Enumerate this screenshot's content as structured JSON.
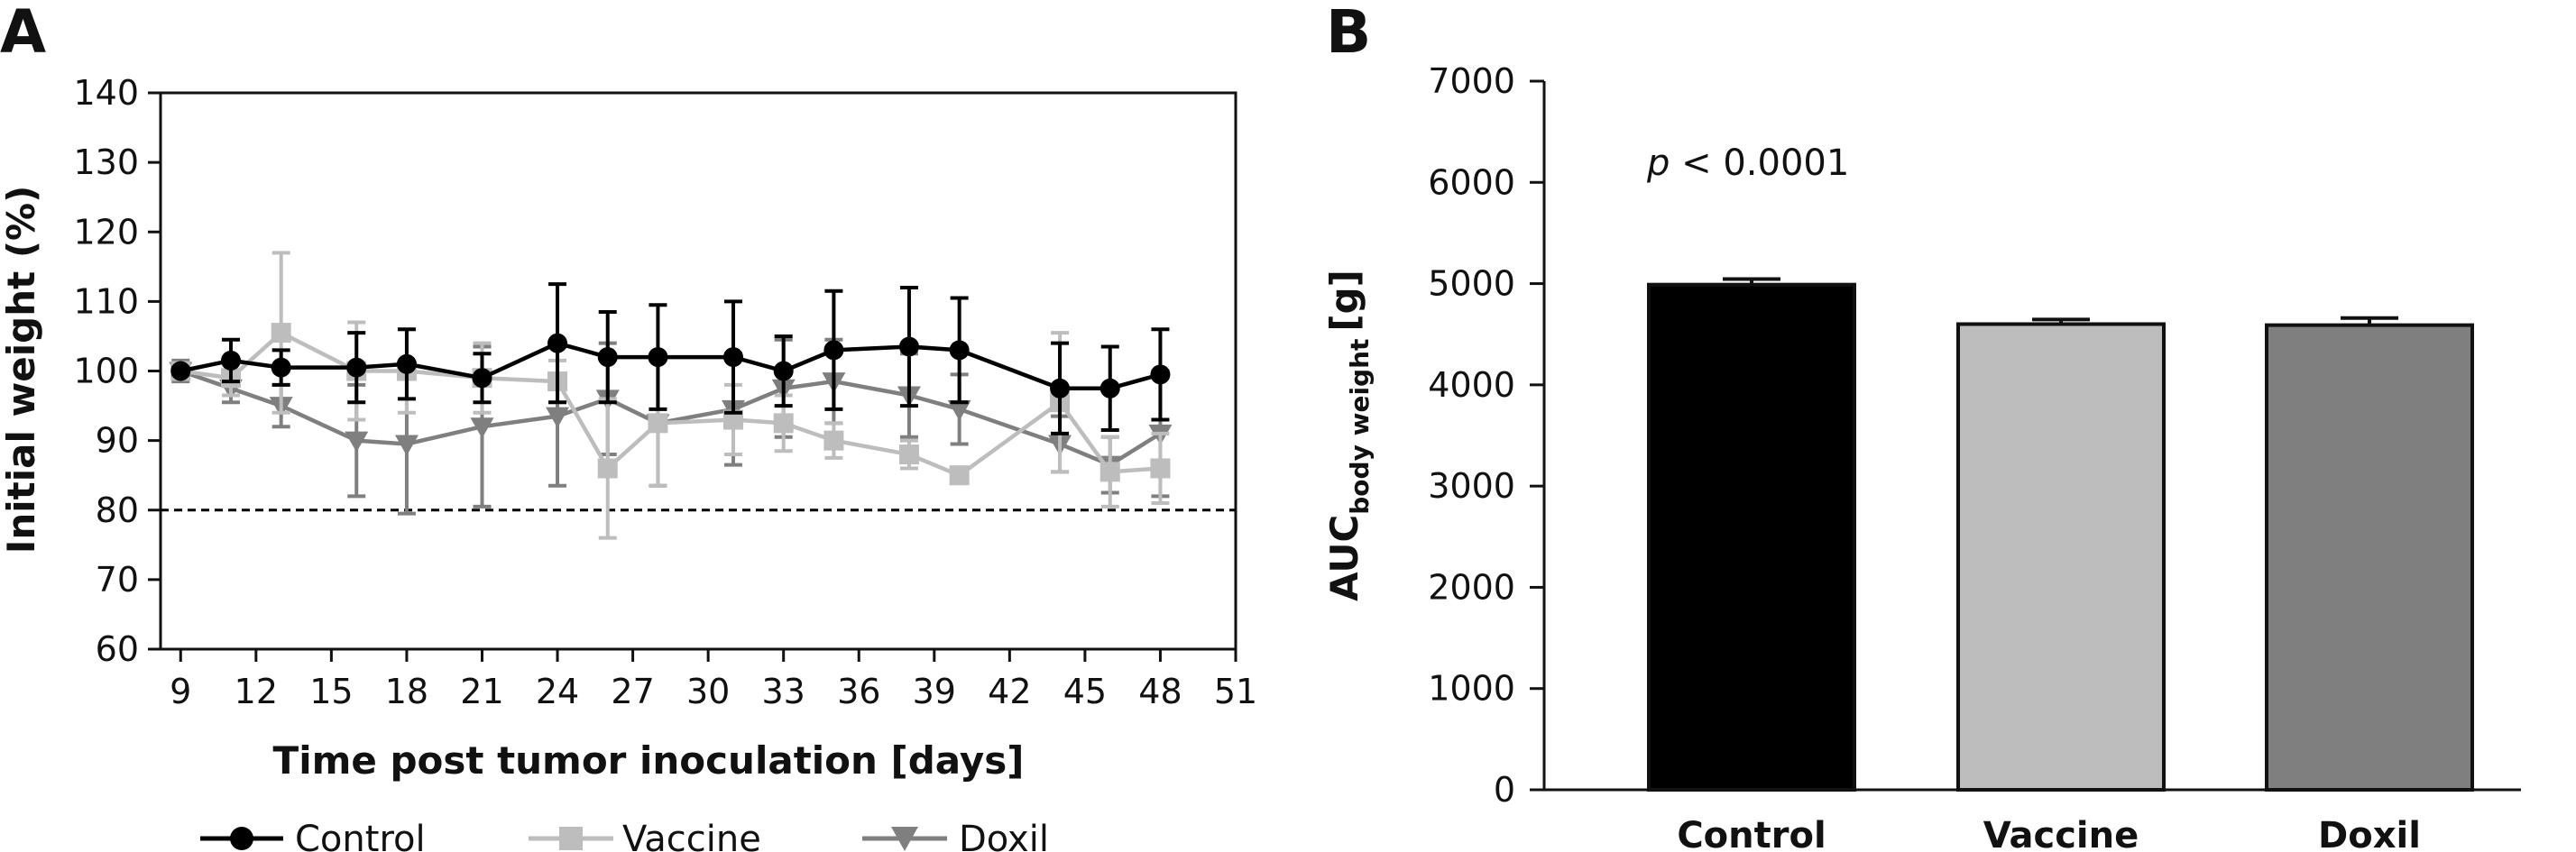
{
  "chart_data": [
    {
      "panel": "A",
      "type": "line",
      "xlabel": "Time post tumor inoculation [days]",
      "ylabel": "Initial weight (%)",
      "xlim": [
        8,
        51
      ],
      "ylim": [
        60,
        140
      ],
      "xticks": [
        9,
        12,
        15,
        18,
        21,
        24,
        27,
        30,
        33,
        36,
        39,
        42,
        45,
        48,
        51
      ],
      "yticks": [
        60,
        70,
        80,
        90,
        100,
        110,
        120,
        130,
        140
      ],
      "reference_line": {
        "y": 80,
        "style": "dashed"
      },
      "legend_placement": "bottom",
      "series": [
        {
          "name": "Control",
          "marker": "circle",
          "color": "#000000",
          "x": [
            9,
            11,
            13,
            16,
            18,
            21,
            24,
            26,
            28,
            31,
            33,
            35,
            38,
            40,
            44,
            46,
            48
          ],
          "y": [
            100,
            101.5,
            100.5,
            100.5,
            101,
            99,
            104,
            102,
            102,
            102,
            100,
            103,
            103.5,
            103,
            97.5,
            97.5,
            99.5
          ],
          "err": [
            0.5,
            3,
            2.5,
            5,
            5,
            3.5,
            8.5,
            6.5,
            7.5,
            8,
            5,
            8.5,
            8.5,
            7.5,
            6.5,
            6,
            6.5
          ]
        },
        {
          "name": "Vaccine",
          "marker": "square",
          "color": "#bdbdbd",
          "x": [
            9,
            11,
            13,
            16,
            18,
            21,
            24,
            26,
            28,
            31,
            33,
            35,
            38,
            40,
            44,
            46,
            48
          ],
          "y": [
            100,
            99,
            105.5,
            100,
            100,
            99,
            98.5,
            86,
            92.5,
            93,
            92.5,
            90,
            88,
            85,
            95.5,
            85.5,
            86
          ],
          "err": [
            0.5,
            2.5,
            11.5,
            7,
            6,
            5,
            3,
            10,
            9,
            5,
            4,
            2.5,
            2,
            1,
            10,
            5,
            5
          ]
        },
        {
          "name": "Doxil",
          "marker": "triangle-down",
          "color": "#7f7f7f",
          "x": [
            9,
            11,
            13,
            16,
            18,
            21,
            24,
            26,
            28,
            31,
            33,
            35,
            38,
            40,
            44,
            46,
            48
          ],
          "y": [
            100,
            97.5,
            95,
            90,
            89.5,
            92,
            93.5,
            96,
            92.5,
            94.5,
            97.5,
            98.5,
            96.5,
            94.5,
            89.5,
            86.5,
            91
          ],
          "err": [
            1.5,
            2,
            3,
            8,
            10,
            11.5,
            10,
            8,
            9,
            8,
            7,
            6,
            6,
            5,
            4,
            4,
            9
          ]
        }
      ]
    },
    {
      "panel": "B",
      "type": "bar",
      "ylabel_main": "AUC",
      "ylabel_sub": "body weight",
      "ylabel_unit": "[g]",
      "ylim": [
        0,
        7000
      ],
      "yticks": [
        0,
        1000,
        2000,
        3000,
        4000,
        5000,
        6000,
        7000
      ],
      "annotation_italic": "p",
      "annotation_rest": " < 0.0001",
      "categories": [
        "Control",
        "Vaccine",
        "Doxil"
      ],
      "values": [
        4990,
        4600,
        4590
      ],
      "err": [
        55,
        45,
        70
      ],
      "colors": [
        "#000000",
        "#bdbdbd",
        "#7f7f7f"
      ]
    }
  ]
}
